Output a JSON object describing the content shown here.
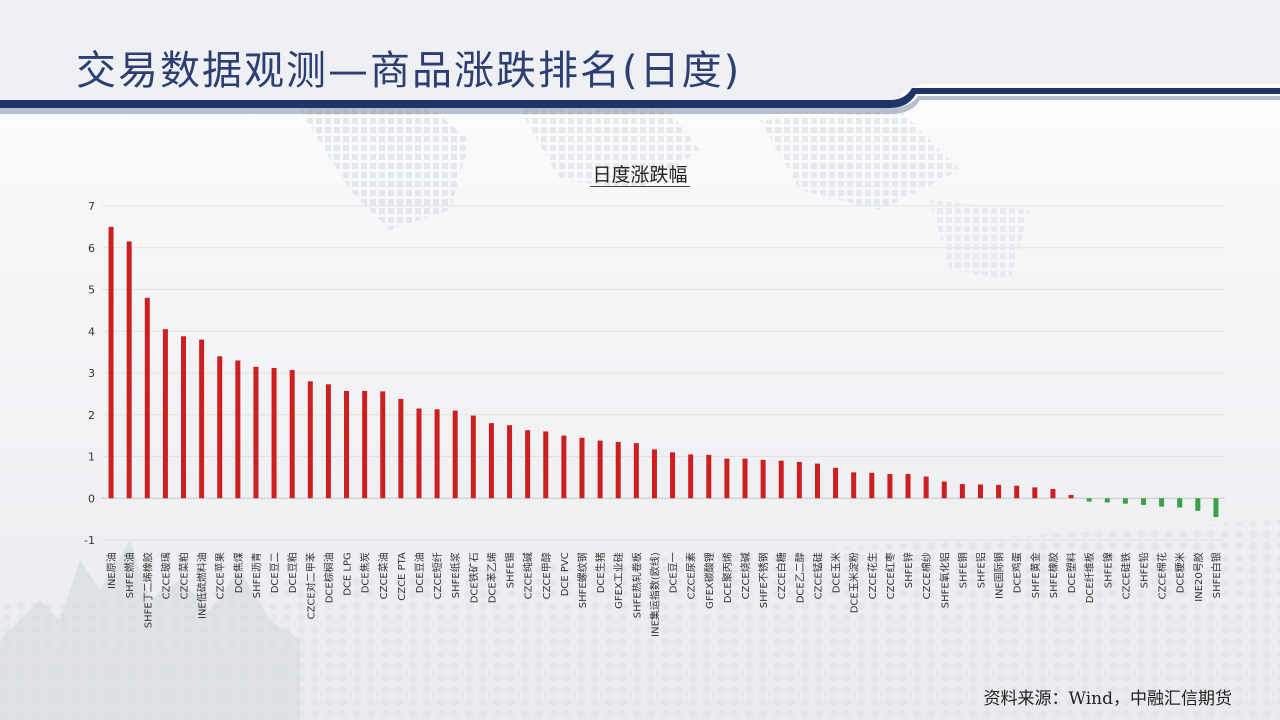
{
  "page": {
    "title": "交易数据观测—商品涨跌排名(日度)",
    "source": "资料来源：Wind，中融汇信期货"
  },
  "colors": {
    "title": "#2d3f72",
    "band_dark": "#1f3568",
    "up": "#cc1f1f",
    "down": "#3aa14a"
  },
  "chart_data": {
    "type": "bar",
    "title": "日度涨跌幅",
    "xlabel": "",
    "ylabel": "",
    "ylim": [
      -1,
      7
    ],
    "yticks": [
      -1,
      0,
      1,
      2,
      3,
      4,
      5,
      6,
      7
    ],
    "grid": true,
    "categories": [
      "INE原油",
      "SHFE燃油",
      "SHFE丁二烯橡胶",
      "CZCE玻璃",
      "CZCE菜粕",
      "INE低硫燃料油",
      "CZCE苹果",
      "DCE焦煤",
      "SHFE沥青",
      "DCE豆二",
      "DCE豆粕",
      "CZCE对二甲苯",
      "DCE棕榈油",
      "DCE LPG",
      "DCE焦炭",
      "CZCE菜油",
      "CZCE PTA",
      "DCE豆油",
      "CZCE短纤",
      "SHFE纸浆",
      "DCE铁矿石",
      "DCE苯乙烯",
      "SHFE锡",
      "CZCE纯碱",
      "CZCE甲醇",
      "DCE PVC",
      "SHFE螺纹钢",
      "DCE生猪",
      "GFEX工业硅",
      "SHFE热轧卷板",
      "INE集运指数(欧线)",
      "DCE豆一",
      "CZCE尿素",
      "GFEX碳酸锂",
      "DCE聚丙烯",
      "CZCE烧碱",
      "SHFE不锈钢",
      "CZCE白糖",
      "DCE乙二醇",
      "CZCE锰硅",
      "DCE玉米",
      "DCE玉米淀粉",
      "CZCE花生",
      "CZCE红枣",
      "SHFE锌",
      "CZCE棉纱",
      "SHFE氧化铝",
      "SHFE铜",
      "SHFE铝",
      "INE国际铜",
      "DCE鸡蛋",
      "SHFE黄金",
      "SHFE橡胶",
      "DCE塑料",
      "DCE纤维板",
      "SHFE镍",
      "CZCE硅铁",
      "SHFE铅",
      "CZCE棉花",
      "DCE粳米",
      "INE20号胶",
      "SHFE白银"
    ],
    "values": [
      6.5,
      6.15,
      4.8,
      4.05,
      3.88,
      3.8,
      3.4,
      3.3,
      3.15,
      3.12,
      3.07,
      2.8,
      2.73,
      2.57,
      2.57,
      2.56,
      2.38,
      2.15,
      2.13,
      2.1,
      1.98,
      1.8,
      1.75,
      1.63,
      1.6,
      1.5,
      1.45,
      1.38,
      1.35,
      1.32,
      1.17,
      1.1,
      1.05,
      1.04,
      0.95,
      0.95,
      0.92,
      0.9,
      0.87,
      0.83,
      0.73,
      0.62,
      0.61,
      0.58,
      0.58,
      0.52,
      0.4,
      0.34,
      0.33,
      0.32,
      0.3,
      0.26,
      0.22,
      0.08,
      -0.08,
      -0.1,
      -0.13,
      -0.16,
      -0.2,
      -0.22,
      -0.3,
      -0.45
    ]
  }
}
